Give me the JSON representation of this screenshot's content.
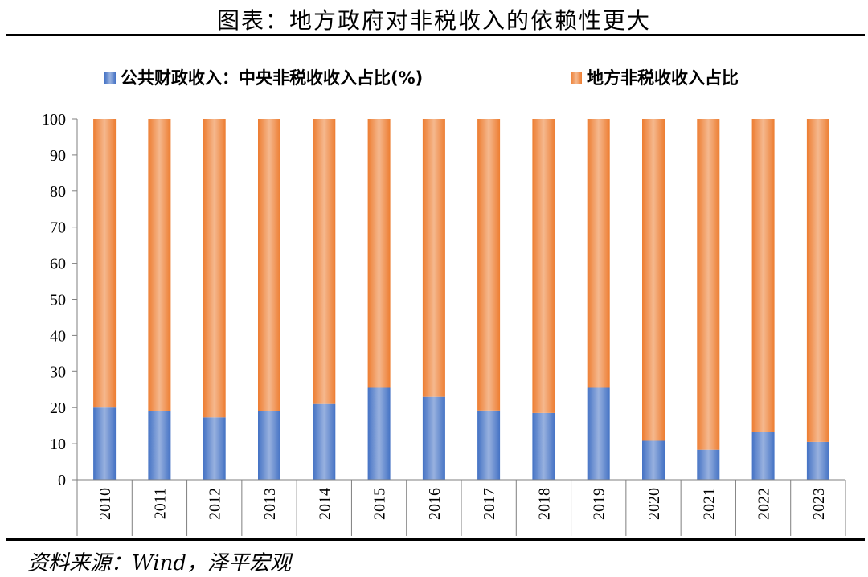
{
  "figure": {
    "title": "图表：地方政府对非税收入的依赖性更大",
    "source": "资料来源：Wind，泽平宏观"
  },
  "chart_data": {
    "type": "bar",
    "stacked": true,
    "categories": [
      "2010",
      "2011",
      "2012",
      "2013",
      "2014",
      "2015",
      "2016",
      "2017",
      "2018",
      "2019",
      "2020",
      "2021",
      "2022",
      "2023"
    ],
    "series": [
      {
        "name": "公共财政收入：中央非税收收入占比(%)",
        "color": "#4472c4",
        "values": [
          20.0,
          19.0,
          17.3,
          19.0,
          21.0,
          25.5,
          23.0,
          19.2,
          18.5,
          25.5,
          10.8,
          8.3,
          13.2,
          10.5
        ]
      },
      {
        "name": "地方非税收收入占比",
        "color": "#ed7d31",
        "values": [
          80.0,
          81.0,
          82.7,
          81.0,
          79.0,
          74.5,
          77.0,
          80.8,
          81.5,
          74.5,
          89.2,
          91.7,
          86.8,
          89.5
        ]
      }
    ],
    "ylim": [
      0,
      100
    ],
    "yticks": [
      0,
      10,
      20,
      30,
      40,
      50,
      60,
      70,
      80,
      90,
      100
    ],
    "legend_position": "top",
    "grid": false
  }
}
